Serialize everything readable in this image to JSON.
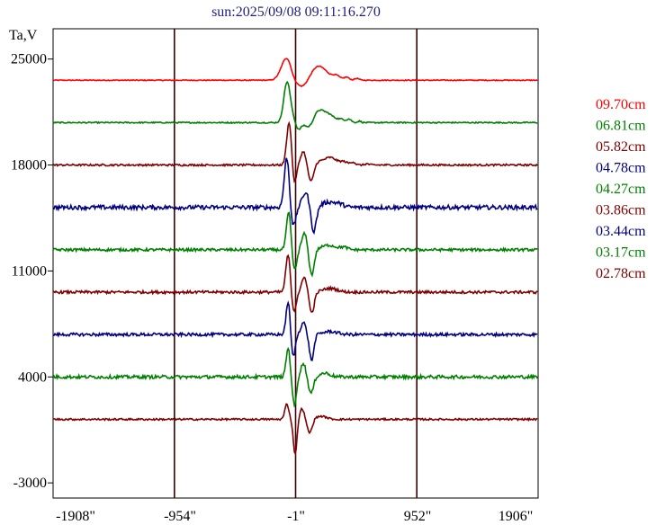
{
  "chart_data": {
    "type": "line",
    "title": "sun:2025/09/08 09:11:16.270",
    "ylabel": "Ta,V",
    "xlabel": "",
    "y_ticks": [
      "25000",
      "18000",
      "11000",
      "4000",
      "-3000"
    ],
    "x_ticks": [
      "-1908\"",
      "-954\"",
      "-1\"",
      "952\"",
      "1906\""
    ],
    "xlim": [
      -1908,
      1906
    ],
    "ylim": [
      -4000,
      27000
    ],
    "vertical_lines": [
      -954,
      -1,
      952
    ],
    "grid": false,
    "legend_position": "right",
    "series": [
      {
        "name": "09.70cm",
        "color": "#ff0000",
        "baseline": 23600,
        "noise": 30,
        "features": [
          [
            -70,
            60,
            1500
          ],
          [
            -20,
            30,
            -200
          ],
          [
            60,
            80,
            -650
          ],
          [
            170,
            100,
            1000
          ],
          [
            320,
            40,
            250
          ],
          [
            400,
            30,
            200
          ],
          [
            480,
            25,
            120
          ]
        ]
      },
      {
        "name": "06.81cm",
        "color": "#008000",
        "baseline": 20800,
        "noise": 40,
        "features": [
          [
            -70,
            35,
            2500
          ],
          [
            -35,
            40,
            400
          ],
          [
            20,
            30,
            -500
          ],
          [
            110,
            45,
            -500
          ],
          [
            180,
            70,
            800
          ],
          [
            270,
            60,
            400
          ],
          [
            360,
            40,
            200
          ],
          [
            420,
            25,
            220
          ],
          [
            500,
            20,
            100
          ]
        ]
      },
      {
        "name": "05.82cm",
        "color": "#800000",
        "baseline": 18000,
        "noise": 60,
        "features": [
          [
            -50,
            28,
            3000
          ],
          [
            -15,
            25,
            -1500
          ],
          [
            60,
            30,
            900
          ],
          [
            120,
            30,
            -1100
          ],
          [
            180,
            40,
            150
          ],
          [
            270,
            70,
            500
          ],
          [
            380,
            40,
            200
          ],
          [
            450,
            25,
            200
          ],
          [
            560,
            20,
            80
          ]
        ]
      },
      {
        "name": "04.78cm",
        "color": "#000080",
        "baseline": 15200,
        "noise": 140,
        "features": [
          [
            -70,
            28,
            3300
          ],
          [
            -20,
            28,
            -1300
          ],
          [
            80,
            40,
            1000
          ],
          [
            140,
            30,
            -1700
          ],
          [
            260,
            80,
            350
          ],
          [
            350,
            50,
            150
          ]
        ]
      },
      {
        "name": "04.27cm",
        "color": "#008000",
        "baseline": 12400,
        "noise": 90,
        "features": [
          [
            -55,
            25,
            2500
          ],
          [
            -10,
            25,
            -1400
          ],
          [
            70,
            30,
            1100
          ],
          [
            125,
            28,
            -1700
          ],
          [
            260,
            80,
            300
          ],
          [
            380,
            40,
            150
          ]
        ]
      },
      {
        "name": "03.86cm",
        "color": "#800000",
        "baseline": 9600,
        "noise": 90,
        "features": [
          [
            -60,
            25,
            2500
          ],
          [
            -15,
            25,
            -1300
          ],
          [
            70,
            30,
            1000
          ],
          [
            125,
            28,
            -1400
          ],
          [
            270,
            80,
            250
          ]
        ]
      },
      {
        "name": "03.44cm",
        "color": "#000080",
        "baseline": 6800,
        "noise": 100,
        "features": [
          [
            -60,
            22,
            2200
          ],
          [
            -20,
            22,
            -1500
          ],
          [
            60,
            28,
            800
          ],
          [
            125,
            25,
            -1700
          ],
          [
            270,
            80,
            200
          ]
        ]
      },
      {
        "name": "03.17cm",
        "color": "#008000",
        "baseline": 4000,
        "noise": 110,
        "features": [
          [
            -60,
            22,
            1900
          ],
          [
            -10,
            22,
            -1900
          ],
          [
            60,
            28,
            900
          ],
          [
            120,
            28,
            -1100
          ],
          [
            230,
            60,
            250
          ]
        ]
      },
      {
        "name": "02.78cm",
        "color": "#800000",
        "baseline": 1200,
        "noise": 60,
        "features": [
          [
            -70,
            22,
            1000
          ],
          [
            -5,
            20,
            -2300
          ],
          [
            50,
            25,
            700
          ],
          [
            110,
            28,
            -900
          ],
          [
            200,
            60,
            200
          ]
        ]
      }
    ]
  }
}
